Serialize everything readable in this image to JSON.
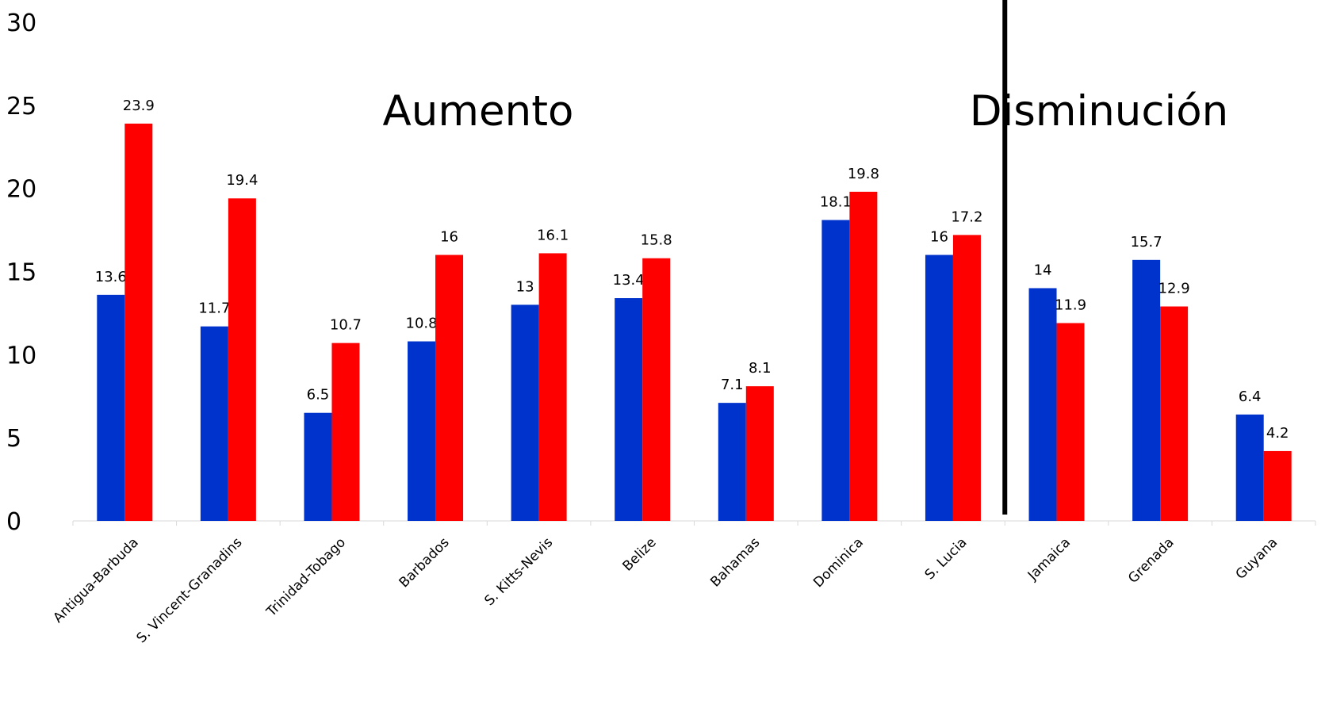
{
  "chart_data": {
    "type": "bar",
    "categories": [
      "Antigua-Barbuda",
      "S. Vincent-Granadins",
      "Trinidad-Tobago",
      "Barbados",
      "S. Kitts-Nevis",
      "Belize",
      "Bahamas",
      "Dominica",
      "S. Lucia",
      "Jamaica",
      "Grenada",
      "Guyana"
    ],
    "series": [
      {
        "color": "#0033cc",
        "values": [
          13.6,
          11.7,
          6.5,
          10.8,
          13,
          13.4,
          7.1,
          18.1,
          16,
          14,
          15.7,
          6.4
        ],
        "labels": [
          "13.6",
          "11.7",
          "6.5",
          "10.8",
          "13",
          "13.4",
          "7.1",
          "18.1",
          "16",
          "14",
          "15.7",
          "6.4"
        ]
      },
      {
        "color": "#ff0000",
        "values": [
          23.9,
          19.4,
          10.7,
          16,
          16.1,
          15.8,
          8.1,
          19.8,
          17.2,
          11.9,
          12.9,
          4.2
        ],
        "labels": [
          "23.9",
          "19.4",
          "10.7",
          "16",
          "16.1",
          "15.8",
          "8.1",
          "19.8",
          "17.2",
          "11.9",
          "12.9",
          "4.2"
        ]
      }
    ],
    "ylim": [
      0,
      30
    ],
    "yticks": [
      "0",
      "5",
      "10",
      "15",
      "20",
      "25",
      "30"
    ],
    "grid": false,
    "annotations": [
      {
        "text": "Aumento",
        "group": "left"
      },
      {
        "text": "Disminución",
        "group": "right"
      }
    ],
    "divider_after_category": "S. Lucia"
  }
}
